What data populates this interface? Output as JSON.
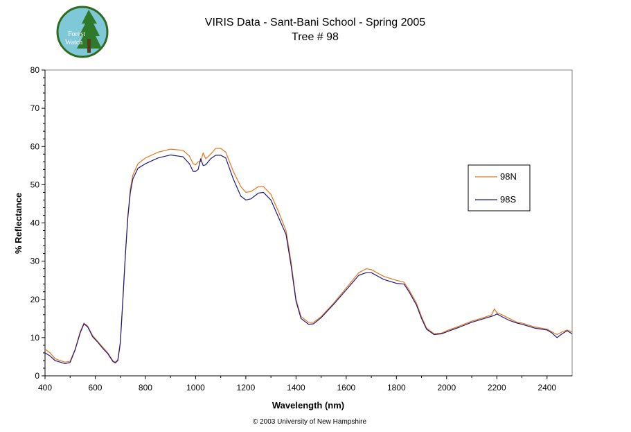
{
  "logo": {
    "line1": "Forest",
    "line2": "Watch",
    "colors": {
      "disc": "#7fc8d8",
      "ring": "#2e6b1f",
      "tree": "#2f7a2a",
      "trunk": "#5a3b1c"
    }
  },
  "footer": {
    "copyright": "© 2003 University of New Hampshire"
  },
  "chart_data": {
    "type": "line",
    "title": "VIRIS Data - Sant-Bani School - Spring 2005",
    "subtitle": "Tree # 98",
    "xlabel": "Wavelength (nm)",
    "ylabel": "% Reflectance",
    "xlim": [
      400,
      2500
    ],
    "ylim": [
      0,
      80
    ],
    "xticks": [
      400,
      600,
      800,
      1000,
      1200,
      1400,
      1600,
      1800,
      2000,
      2200,
      2400
    ],
    "yticks": [
      0,
      10,
      20,
      30,
      40,
      50,
      60,
      70,
      80
    ],
    "grid": false,
    "legend_position": "right",
    "series": [
      {
        "name": "98N",
        "color": "#e8731c",
        "points": [
          [
            400,
            7.0
          ],
          [
            420,
            6.0
          ],
          [
            440,
            4.5
          ],
          [
            460,
            4.0
          ],
          [
            480,
            3.6
          ],
          [
            500,
            3.8
          ],
          [
            520,
            7.0
          ],
          [
            540,
            11.5
          ],
          [
            555,
            13.8
          ],
          [
            570,
            13.0
          ],
          [
            590,
            10.5
          ],
          [
            610,
            9.0
          ],
          [
            630,
            7.5
          ],
          [
            650,
            6.0
          ],
          [
            670,
            4.0
          ],
          [
            680,
            3.6
          ],
          [
            690,
            4.2
          ],
          [
            700,
            9.0
          ],
          [
            710,
            20.0
          ],
          [
            720,
            32.0
          ],
          [
            730,
            42.0
          ],
          [
            740,
            49.0
          ],
          [
            750,
            52.5
          ],
          [
            770,
            55.5
          ],
          [
            800,
            57.0
          ],
          [
            850,
            58.5
          ],
          [
            900,
            59.3
          ],
          [
            950,
            59.0
          ],
          [
            975,
            57.5
          ],
          [
            990,
            55.5
          ],
          [
            1000,
            55.2
          ],
          [
            1010,
            56.0
          ],
          [
            1020,
            56.0
          ],
          [
            1030,
            58.3
          ],
          [
            1040,
            56.8
          ],
          [
            1060,
            58.0
          ],
          [
            1080,
            59.5
          ],
          [
            1100,
            59.5
          ],
          [
            1120,
            58.5
          ],
          [
            1150,
            53.5
          ],
          [
            1180,
            49.5
          ],
          [
            1200,
            48.0
          ],
          [
            1220,
            48.2
          ],
          [
            1250,
            49.5
          ],
          [
            1270,
            49.5
          ],
          [
            1300,
            47.5
          ],
          [
            1330,
            43.0
          ],
          [
            1360,
            38.0
          ],
          [
            1380,
            30.0
          ],
          [
            1400,
            20.0
          ],
          [
            1420,
            15.5
          ],
          [
            1450,
            14.0
          ],
          [
            1470,
            14.0
          ],
          [
            1500,
            15.5
          ],
          [
            1550,
            19.0
          ],
          [
            1600,
            23.0
          ],
          [
            1650,
            27.0
          ],
          [
            1680,
            28.0
          ],
          [
            1700,
            27.8
          ],
          [
            1750,
            26.0
          ],
          [
            1800,
            25.0
          ],
          [
            1830,
            24.5
          ],
          [
            1850,
            22.5
          ],
          [
            1880,
            19.0
          ],
          [
            1900,
            15.5
          ],
          [
            1920,
            12.5
          ],
          [
            1950,
            11.0
          ],
          [
            1980,
            11.2
          ],
          [
            2000,
            11.8
          ],
          [
            2050,
            13.0
          ],
          [
            2100,
            14.3
          ],
          [
            2150,
            15.3
          ],
          [
            2180,
            16.0
          ],
          [
            2190,
            17.5
          ],
          [
            2200,
            16.5
          ],
          [
            2220,
            16.0
          ],
          [
            2250,
            15.0
          ],
          [
            2280,
            14.0
          ],
          [
            2300,
            13.8
          ],
          [
            2350,
            12.8
          ],
          [
            2400,
            12.2
          ],
          [
            2420,
            11.5
          ],
          [
            2440,
            10.8
          ],
          [
            2460,
            11.5
          ],
          [
            2480,
            12.0
          ],
          [
            2500,
            11.5
          ]
        ]
      },
      {
        "name": "98S",
        "color": "#1a1a80",
        "points": [
          [
            400,
            6.0
          ],
          [
            420,
            5.2
          ],
          [
            440,
            4.0
          ],
          [
            460,
            3.6
          ],
          [
            480,
            3.2
          ],
          [
            500,
            3.5
          ],
          [
            520,
            6.8
          ],
          [
            540,
            11.2
          ],
          [
            555,
            13.6
          ],
          [
            570,
            12.8
          ],
          [
            590,
            10.2
          ],
          [
            610,
            8.8
          ],
          [
            630,
            7.2
          ],
          [
            650,
            5.8
          ],
          [
            670,
            3.8
          ],
          [
            680,
            3.4
          ],
          [
            690,
            4.0
          ],
          [
            700,
            8.5
          ],
          [
            710,
            19.5
          ],
          [
            720,
            31.5
          ],
          [
            730,
            41.5
          ],
          [
            740,
            48.0
          ],
          [
            750,
            51.5
          ],
          [
            770,
            54.3
          ],
          [
            800,
            55.5
          ],
          [
            850,
            57.0
          ],
          [
            900,
            57.8
          ],
          [
            950,
            57.3
          ],
          [
            975,
            55.5
          ],
          [
            990,
            53.5
          ],
          [
            1000,
            53.5
          ],
          [
            1010,
            54.0
          ],
          [
            1020,
            56.8
          ],
          [
            1030,
            55.0
          ],
          [
            1040,
            55.2
          ],
          [
            1060,
            56.8
          ],
          [
            1080,
            57.7
          ],
          [
            1100,
            57.7
          ],
          [
            1120,
            57.0
          ],
          [
            1150,
            51.5
          ],
          [
            1180,
            47.0
          ],
          [
            1200,
            46.0
          ],
          [
            1220,
            46.3
          ],
          [
            1250,
            47.8
          ],
          [
            1270,
            48.0
          ],
          [
            1300,
            46.0
          ],
          [
            1330,
            41.5
          ],
          [
            1360,
            37.0
          ],
          [
            1380,
            29.0
          ],
          [
            1400,
            19.5
          ],
          [
            1420,
            15.0
          ],
          [
            1450,
            13.5
          ],
          [
            1470,
            13.6
          ],
          [
            1500,
            15.2
          ],
          [
            1550,
            18.7
          ],
          [
            1600,
            22.5
          ],
          [
            1650,
            26.3
          ],
          [
            1680,
            27.0
          ],
          [
            1700,
            27.0
          ],
          [
            1750,
            25.2
          ],
          [
            1800,
            24.2
          ],
          [
            1830,
            24.0
          ],
          [
            1850,
            22.0
          ],
          [
            1880,
            18.5
          ],
          [
            1900,
            15.0
          ],
          [
            1920,
            12.2
          ],
          [
            1950,
            10.8
          ],
          [
            1980,
            11.0
          ],
          [
            2000,
            11.5
          ],
          [
            2050,
            12.7
          ],
          [
            2100,
            14.0
          ],
          [
            2150,
            15.0
          ],
          [
            2180,
            15.6
          ],
          [
            2190,
            15.8
          ],
          [
            2200,
            16.2
          ],
          [
            2220,
            15.5
          ],
          [
            2250,
            14.5
          ],
          [
            2280,
            13.8
          ],
          [
            2300,
            13.5
          ],
          [
            2350,
            12.5
          ],
          [
            2400,
            12.0
          ],
          [
            2420,
            11.2
          ],
          [
            2440,
            10.0
          ],
          [
            2460,
            11.0
          ],
          [
            2480,
            11.8
          ],
          [
            2500,
            11.0
          ]
        ]
      }
    ]
  }
}
